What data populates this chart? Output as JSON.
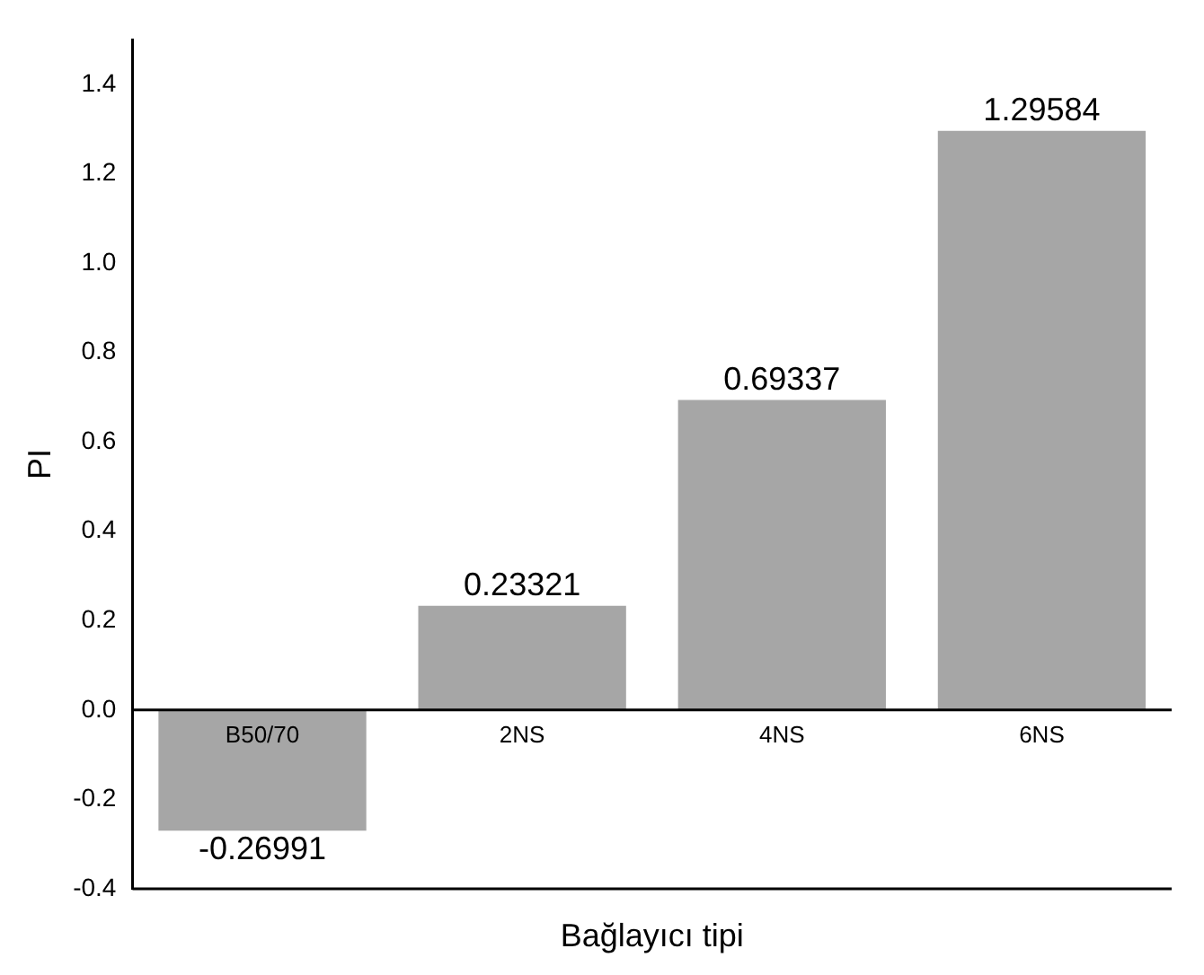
{
  "chart_data": {
    "type": "bar",
    "xlabel": "Bağlayıcı tipi",
    "ylabel": "PI",
    "categories": [
      "B50/70",
      "2NS",
      "4NS",
      "6NS"
    ],
    "values": [
      -0.26991,
      0.23321,
      0.69337,
      1.29584
    ],
    "color": "#a6a6a6",
    "data_labels": true,
    "ylim": [
      -0.4,
      1.5
    ],
    "yticks": [
      -0.4,
      -0.2,
      {
        "value": 0,
        "label": "0.0"
      },
      0.2,
      0.4,
      0.6,
      0.8,
      {
        "value": 1,
        "label": "1.0"
      },
      1.2,
      1.4
    ],
    "grid": false,
    "legend": false
  }
}
